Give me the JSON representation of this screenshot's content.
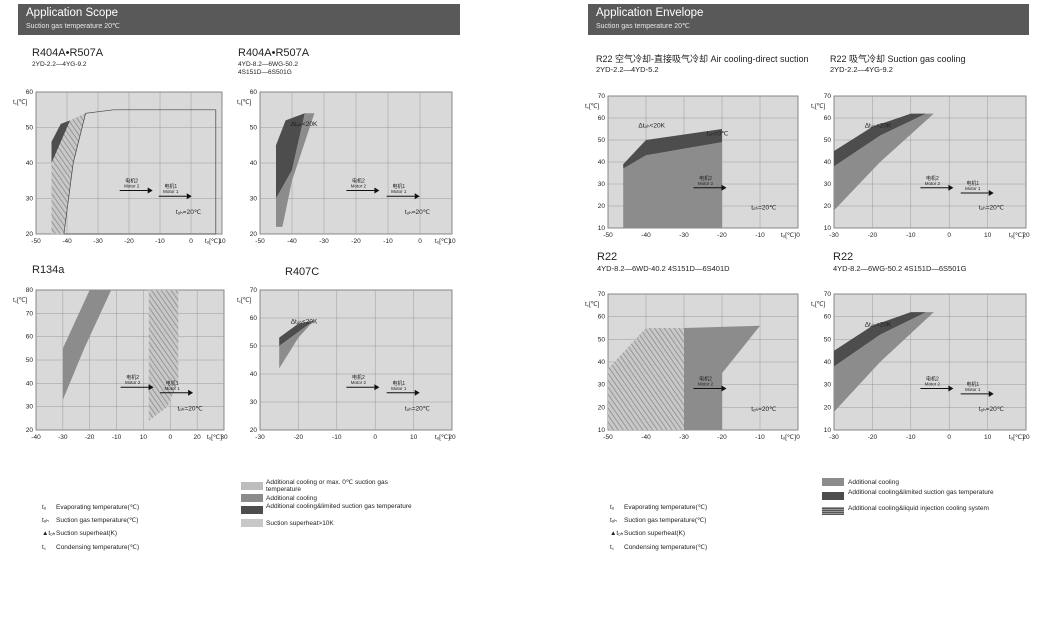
{
  "left_page": {
    "header": {
      "title": "Application Scope",
      "subtitle": "Suction gas temperature 20℃"
    },
    "charts": [
      {
        "title": "R404A•R507A",
        "subtitle": [
          "2YD-2.2—4YG-9.2"
        ]
      },
      {
        "title": "R404A•R507A",
        "subtitle": [
          "4YD-8.2—6WG-50.2",
          "4S151D—6S501G"
        ]
      },
      {
        "title": "R134a",
        "subtitle": []
      },
      {
        "title": "R407C",
        "subtitle": []
      }
    ],
    "legend_symbols": [
      {
        "symbol": "tₒ",
        "text": "Evaporating temperature(℃)"
      },
      {
        "symbol": "tₒₕ",
        "text": "Suction gas temperature(℃)"
      },
      {
        "symbol": "▲tₒₕ",
        "text": "Suction superheat(K)"
      },
      {
        "symbol": "t꜀",
        "text": "Condensing temperature(℃)"
      }
    ],
    "legend_fills": [
      {
        "color": "#bdbdbd",
        "text": "Additional cooling or max. 0℃ suction gas temperature"
      },
      {
        "color": "#8c8c8c",
        "text": "Additional cooling"
      },
      {
        "color": "#4d4d4d",
        "text": "Additional cooling&limited suction gas temperature"
      },
      {
        "color": "#c8c8c8",
        "text": "Suction superheat>10K"
      }
    ]
  },
  "right_page": {
    "header": {
      "title": "Application Envelope",
      "subtitle": "Suction gas temperature 20℃"
    },
    "charts": [
      {
        "title": "R22 空气冷却-直接吸气冷却 Air cooling-direct suction",
        "subtitle": [
          "2YD-2.2—4YD-5.2"
        ]
      },
      {
        "title": "R22 吸气冷却 Suction gas cooling",
        "subtitle": [
          "2YD-2.2—4YG-9.2"
        ]
      },
      {
        "title": "R22",
        "subtitle": [
          "4YD-8.2—6WD-40.2   4S151D—6S401D"
        ]
      },
      {
        "title": "R22",
        "subtitle": [
          "4YD-8.2—6WG-50.2   4S151D—6S501G"
        ]
      }
    ],
    "legend_symbols": [
      {
        "symbol": "tₒ",
        "text": "Evaporating temperature(℃)"
      },
      {
        "symbol": "tₒₕ",
        "text": "Suction gas temperature(℃)"
      },
      {
        "symbol": "▲tₒₕ",
        "text": "Suction superheat(K)"
      },
      {
        "symbol": "t꜀",
        "text": "Condensing temperature(℃)"
      }
    ],
    "legend_fills": [
      {
        "color": "#8c8c8c",
        "text": "Additional cooling"
      },
      {
        "color": "#4d4d4d",
        "text": "Additional cooling&limited suction gas temperature"
      },
      {
        "color": "hatch",
        "text": "Additional cooling&liquid injection cooling system"
      }
    ]
  },
  "chart_data": [
    {
      "type": "area",
      "title": "R404A•R507A",
      "xlabel": "tₒ[℃]",
      "ylabel": "t꜀[℃]",
      "xlim": [
        -50,
        10
      ],
      "ylim": [
        20,
        60
      ],
      "x_ticks": [
        "-50",
        "-40",
        "-30",
        "-20",
        "-10",
        "0",
        "10"
      ],
      "y_ticks": [
        "20",
        "30",
        "40",
        "50",
        "60"
      ],
      "annotations": [
        "电机2",
        "Motor 2",
        "电机1",
        "Motor 1",
        "tₒₕ=20℃"
      ],
      "regions": [
        {
          "fill": "#4d4d4d",
          "points": [
            [
              -45,
              40
            ],
            [
              -45,
              46
            ],
            [
              -42,
              51
            ],
            [
              -39,
              52
            ],
            [
              -43,
              38
            ]
          ]
        },
        {
          "fill": "hatch",
          "points": [
            [
              -45,
              20
            ],
            [
              -45,
              40
            ],
            [
              -39,
              52
            ],
            [
              -34,
              54
            ],
            [
              -38,
              40
            ],
            [
              -41,
              20
            ]
          ]
        },
        {
          "fill": "outline",
          "points": [
            [
              -41,
              20
            ],
            [
              -38,
              40
            ],
            [
              -34,
              54
            ],
            [
              -25,
              55
            ],
            [
              8,
              55
            ],
            [
              8,
              20
            ]
          ]
        }
      ]
    },
    {
      "type": "area",
      "title": "R404A•R507A",
      "xlabel": "tₒ[℃]",
      "ylabel": "t꜀[℃]",
      "xlim": [
        -50,
        10
      ],
      "ylim": [
        20,
        60
      ],
      "x_ticks": [
        "-50",
        "-40",
        "-30",
        "-20",
        "-10",
        "0",
        "10"
      ],
      "y_ticks": [
        "20",
        "30",
        "40",
        "50",
        "60"
      ],
      "annotations": [
        "Δtₒₕ<20K",
        "电机2",
        "Motor 2",
        "电机1",
        "Motor 1",
        "tₒₕ=20℃"
      ],
      "regions": [
        {
          "fill": "#4d4d4d",
          "points": [
            [
              -45,
              30
            ],
            [
              -45,
              45
            ],
            [
              -42,
              52
            ],
            [
              -36,
              54
            ],
            [
              -40,
              38
            ]
          ]
        },
        {
          "fill": "#8c8c8c",
          "points": [
            [
              -45,
              22
            ],
            [
              -45,
              30
            ],
            [
              -40,
              38
            ],
            [
              -36,
              54
            ],
            [
              -33,
              54
            ],
            [
              -40,
              35
            ],
            [
              -43,
              22
            ]
          ]
        }
      ]
    },
    {
      "type": "area",
      "title": "R134a",
      "xlabel": "tₒ[℃]",
      "ylabel": "t꜀[℃]",
      "xlim": [
        -40,
        30
      ],
      "ylim": [
        20,
        80
      ],
      "x_ticks": [
        "-40",
        "-30",
        "-20",
        "-10",
        "10",
        "0",
        "20",
        "30"
      ],
      "y_ticks": [
        "20",
        "30",
        "40",
        "50",
        "60",
        "70",
        "80"
      ],
      "annotations": [
        "电机2",
        "Motor 2",
        "电机1",
        "Motor 1",
        "tₒₕ=20℃"
      ],
      "regions": [
        {
          "fill": "#8c8c8c",
          "points": [
            [
              -30,
              33
            ],
            [
              -30,
              55
            ],
            [
              -20,
              80
            ],
            [
              -12,
              80
            ],
            [
              -22,
              55
            ]
          ]
        },
        {
          "fill": "hatch",
          "points": [
            [
              2,
              24
            ],
            [
              2,
              80
            ],
            [
              13,
              80
            ],
            [
              13,
              41
            ],
            [
              9,
              30
            ]
          ]
        }
      ]
    },
    {
      "type": "area",
      "title": "R407C",
      "xlabel": "tₒ[℃]",
      "ylabel": "t꜀[℃]",
      "xlim": [
        -30,
        20
      ],
      "ylim": [
        20,
        70
      ],
      "x_ticks": [
        "-30",
        "-20",
        "-10",
        "0",
        "10",
        "20"
      ],
      "y_ticks": [
        "20",
        "30",
        "40",
        "50",
        "60",
        "70"
      ],
      "annotations": [
        "Δtₒₕ<20K",
        "电机2",
        "Motor 2",
        "电机1",
        "Motor 1",
        "tₒₕ=20℃"
      ],
      "regions": [
        {
          "fill": "#4d4d4d",
          "points": [
            [
              -25,
              50
            ],
            [
              -25,
              53
            ],
            [
              -20,
              58
            ],
            [
              -16,
              59
            ],
            [
              -20,
              55
            ]
          ]
        },
        {
          "fill": "#8c8c8c",
          "points": [
            [
              -25,
              42
            ],
            [
              -25,
              50
            ],
            [
              -20,
              55
            ],
            [
              -16,
              59
            ],
            [
              -20,
              53
            ]
          ]
        }
      ]
    },
    {
      "type": "area",
      "title": "R22 空气冷却-直接吸气冷却 Air cooling-direct suction",
      "xlabel": "tₒ[℃]",
      "ylabel": "t꜀[℃]",
      "xlim": [
        -50,
        0
      ],
      "ylim": [
        10,
        70
      ],
      "x_ticks": [
        "-50",
        "-40",
        "-30",
        "-20",
        "-10",
        "0"
      ],
      "y_ticks": [
        "10",
        "20",
        "30",
        "40",
        "50",
        "60",
        "70"
      ],
      "annotations": [
        "tₒₕ<0℃",
        "Δtₒₕ<20K",
        "电机2",
        "Motor 2",
        "tₒₕ=20℃"
      ],
      "regions": [
        {
          "fill": "#4d4d4d",
          "points": [
            [
              -46,
              37
            ],
            [
              -46,
              39
            ],
            [
              -40,
              50
            ],
            [
              -20,
              55
            ],
            [
              -20,
              49
            ],
            [
              -30,
              46
            ],
            [
              -40,
              43
            ]
          ]
        },
        {
          "fill": "#8c8c8c",
          "points": [
            [
              -46,
              10
            ],
            [
              -46,
              37
            ],
            [
              -40,
              43
            ],
            [
              -30,
              46
            ],
            [
              -20,
              49
            ],
            [
              -20,
              10
            ]
          ]
        }
      ]
    },
    {
      "type": "area",
      "title": "R22 吸气冷却 Suction gas cooling",
      "xlabel": "tₒ[℃]",
      "ylabel": "t꜀[℃]",
      "xlim": [
        -30,
        20
      ],
      "ylim": [
        10,
        70
      ],
      "x_ticks": [
        "-30",
        "-20",
        "-10",
        "0",
        "10",
        "20"
      ],
      "y_ticks": [
        "10",
        "20",
        "30",
        "40",
        "50",
        "60",
        "70"
      ],
      "annotations": [
        "Δtₒₕ<20K",
        "电机1",
        "Motor 1",
        "电机2",
        "Motor 2",
        "tₒₕ=20℃"
      ],
      "regions": [
        {
          "fill": "#4d4d4d",
          "points": [
            [
              -30,
              38
            ],
            [
              -30,
              45
            ],
            [
              -20,
              56
            ],
            [
              -10,
              62
            ],
            [
              -6,
              62
            ],
            [
              -18,
              52
            ]
          ]
        },
        {
          "fill": "#8c8c8c",
          "points": [
            [
              -30,
              18
            ],
            [
              -30,
              38
            ],
            [
              -18,
              52
            ],
            [
              -6,
              62
            ],
            [
              -4,
              62
            ],
            [
              -18,
              40
            ]
          ]
        }
      ]
    },
    {
      "type": "area",
      "title": "R22",
      "xlabel": "tₒ[℃]",
      "ylabel": "t꜀[℃]",
      "xlim": [
        -50,
        0
      ],
      "ylim": [
        10,
        70
      ],
      "x_ticks": [
        "-50",
        "-40",
        "-30",
        "-20",
        "-10",
        "0"
      ],
      "y_ticks": [
        "10",
        "20",
        "30",
        "40",
        "50",
        "60",
        "70"
      ],
      "annotations": [
        "电机2",
        "Motor 2",
        "tₒₕ=20℃"
      ],
      "regions": [
        {
          "fill": "hatch",
          "points": [
            [
              -50,
              10
            ],
            [
              -50,
              37
            ],
            [
              -40,
              55
            ],
            [
              -30,
              55
            ],
            [
              -30,
              10
            ]
          ]
        },
        {
          "fill": "#8c8c8c",
          "points": [
            [
              -30,
              10
            ],
            [
              -30,
              55
            ],
            [
              -10,
              56
            ],
            [
              -20,
              35
            ],
            [
              -20,
              10
            ]
          ]
        }
      ]
    },
    {
      "type": "area",
      "title": "R22",
      "xlabel": "tₒ[℃]",
      "ylabel": "t꜀[℃]",
      "xlim": [
        -30,
        20
      ],
      "ylim": [
        10,
        70
      ],
      "x_ticks": [
        "-30",
        "-20",
        "-10",
        "0",
        "10",
        "20"
      ],
      "y_ticks": [
        "10",
        "20",
        "30",
        "40",
        "50",
        "60",
        "70"
      ],
      "annotations": [
        "Δtₒₕ<20K",
        "电机1",
        "Motor 1",
        "电机2",
        "Motor 2",
        "tₒₕ=20℃"
      ],
      "regions": [
        {
          "fill": "#4d4d4d",
          "points": [
            [
              -30,
              38
            ],
            [
              -30,
              45
            ],
            [
              -20,
              56
            ],
            [
              -10,
              62
            ],
            [
              -6,
              62
            ],
            [
              -18,
              52
            ]
          ]
        },
        {
          "fill": "#8c8c8c",
          "points": [
            [
              -30,
              18
            ],
            [
              -30,
              38
            ],
            [
              -18,
              52
            ],
            [
              -6,
              62
            ],
            [
              -4,
              62
            ],
            [
              -18,
              40
            ]
          ]
        }
      ]
    }
  ]
}
